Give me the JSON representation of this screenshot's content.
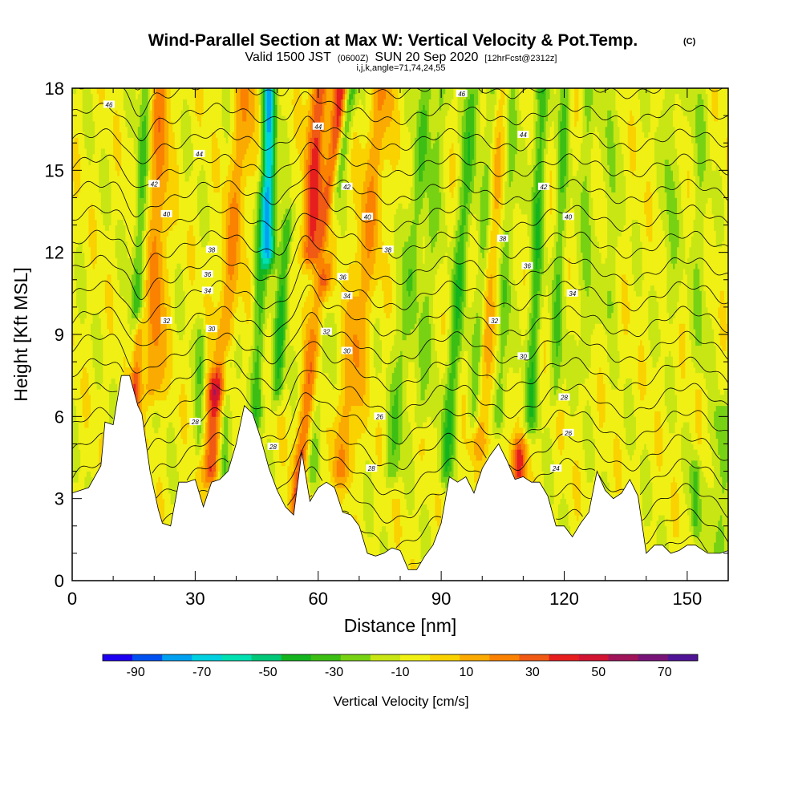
{
  "title": {
    "main": "Wind-Parallel Section at Max W: Vertical Velocity & Pot.Temp.",
    "copyright": "(C)",
    "valid_prefix": "Valid 1500 JST",
    "valid_z": "(0600Z)",
    "valid_date": "SUN 20 Sep 2020",
    "forecast": "[12hrFcst@2312z]",
    "params": "i,j,k,angle=71,74,24,55"
  },
  "chart_data": {
    "type": "heatmap",
    "xlabel": "Distance [nm]",
    "ylabel": "Height [Kft MSL]",
    "xlim": [
      0,
      160
    ],
    "ylim": [
      0,
      18
    ],
    "x_ticks": [
      0,
      30,
      60,
      90,
      120,
      150
    ],
    "y_ticks": [
      0,
      3,
      6,
      9,
      12,
      15,
      18
    ],
    "colorbar": {
      "label": "Vertical Velocity [cm/s]",
      "tick_labels": [
        "-90",
        "-70",
        "-50",
        "-30",
        "-10",
        "10",
        "30",
        "50",
        "70"
      ],
      "bounds": [
        -100,
        80
      ],
      "step": 10,
      "colors": [
        "#1e00f0",
        "#0050f0",
        "#00a0f0",
        "#00d0e0",
        "#00e0b0",
        "#00c878",
        "#14b41e",
        "#3cbe14",
        "#78d214",
        "#c8e614",
        "#f0f014",
        "#fad200",
        "#faaa00",
        "#fa8200",
        "#f05a14",
        "#e61e1e",
        "#d21432",
        "#a0145a",
        "#781478",
        "#501496"
      ]
    },
    "terrain_profile": {
      "x": [
        0,
        4,
        7,
        8,
        10,
        12,
        14,
        16,
        17,
        19,
        21,
        22,
        24,
        26,
        28,
        30,
        32,
        34,
        36,
        38,
        40,
        42,
        44,
        46,
        48,
        50,
        52,
        54,
        56,
        58,
        60,
        62,
        64,
        66,
        68,
        70,
        72,
        74,
        76,
        78,
        80,
        82,
        84,
        86,
        88,
        90,
        92,
        94,
        96,
        98,
        100,
        102,
        104,
        106,
        108,
        110,
        112,
        114,
        116,
        118,
        120,
        122,
        124,
        126,
        128,
        130,
        132,
        134,
        136,
        138,
        140,
        142,
        144,
        146,
        148,
        150,
        152,
        155,
        158,
        160
      ],
      "y": [
        3.2,
        3.4,
        4.2,
        5.8,
        5.7,
        7.5,
        7.5,
        6.4,
        6.1,
        4.0,
        2.6,
        2.1,
        2.0,
        3.6,
        3.6,
        3.7,
        2.7,
        3.6,
        3.7,
        4.0,
        5.0,
        6.4,
        6.1,
        5.2,
        4.1,
        3.3,
        2.7,
        2.4,
        4.7,
        2.9,
        3.4,
        3.6,
        3.4,
        2.5,
        2.4,
        2.0,
        1.0,
        0.9,
        1.0,
        1.2,
        1.1,
        0.4,
        0.4,
        0.9,
        1.3,
        2.1,
        3.8,
        3.6,
        3.8,
        3.2,
        4.1,
        4.6,
        5.0,
        4.4,
        3.7,
        3.8,
        3.6,
        3.6,
        3.1,
        2.0,
        2.0,
        1.6,
        2.1,
        2.5,
        4.0,
        3.3,
        3.0,
        3.2,
        3.7,
        3.1,
        1.0,
        1.3,
        1.3,
        1.0,
        1.1,
        1.3,
        1.3,
        1.0,
        1.0,
        1.1
      ]
    },
    "updraft_streaks": [
      {
        "x_base": 15,
        "lean": 0.3,
        "width": 1.4,
        "w": 48,
        "z_min": 6,
        "z_max": 9
      },
      {
        "x_base": 34,
        "lean": 0.2,
        "width": 1.8,
        "w": 52,
        "z_min": 4,
        "z_max": 7
      },
      {
        "x_base": 55,
        "lean": 0.7,
        "width": 2.0,
        "w": 48,
        "z_min": 2.5,
        "z_max": 18
      },
      {
        "x_base": 58,
        "lean": 0.4,
        "width": 2.5,
        "w": 45,
        "z_min": 12,
        "z_max": 18
      },
      {
        "x_base": 109,
        "lean": 0.0,
        "width": 2.0,
        "w": 45,
        "z_min": 3.8,
        "z_max": 4.6
      },
      {
        "x_base": 20,
        "lean": 0.15,
        "width": 2.5,
        "w": 28,
        "z_min": 7,
        "z_max": 18
      },
      {
        "x_base": 36,
        "lean": 0.6,
        "width": 2.5,
        "w": 25,
        "z_min": 7,
        "z_max": 18
      },
      {
        "x_base": 66,
        "lean": 0.7,
        "width": 3,
        "w": 24,
        "z_min": 4,
        "z_max": 18
      },
      {
        "x_base": 100,
        "lean": 0.4,
        "width": 3,
        "w": 20,
        "z_min": 5,
        "z_max": 18
      }
    ],
    "downdraft_streaks": [
      {
        "x_base": 15,
        "lean": 0.3,
        "width": 1.5,
        "w": -25,
        "z_min": 8,
        "z_max": 18
      },
      {
        "x_base": 31,
        "lean": 0.1,
        "width": 1.2,
        "w": -20,
        "z_min": 5,
        "z_max": 9
      },
      {
        "x_base": 37,
        "lean": 0.2,
        "width": 1.3,
        "w": -25,
        "z_min": 4,
        "z_max": 8
      },
      {
        "x_base": 45,
        "lean": 0.2,
        "width": 1.5,
        "w": -28,
        "z_min": 6,
        "z_max": 14
      },
      {
        "x_base": 48,
        "lean": 0.0,
        "width": 1.6,
        "w": -72,
        "z_min": 12,
        "z_max": 18
      },
      {
        "x_base": 50,
        "lean": 0.4,
        "width": 1.4,
        "w": -35,
        "z_min": 7,
        "z_max": 13
      },
      {
        "x_base": 58,
        "lean": 0.5,
        "width": 2.0,
        "w": -28,
        "z_min": 4,
        "z_max": 10
      },
      {
        "x_base": 62,
        "lean": 1.0,
        "width": 1.5,
        "w": -40,
        "z_min": 12,
        "z_max": 18
      },
      {
        "x_base": 78,
        "lean": 0.6,
        "width": 2.0,
        "w": -22,
        "z_min": 4,
        "z_max": 18
      },
      {
        "x_base": 85,
        "lean": 0.4,
        "width": 1.5,
        "w": -20,
        "z_min": 6,
        "z_max": 18
      },
      {
        "x_base": 91,
        "lean": 0.5,
        "width": 1.8,
        "w": -30,
        "z_min": 4,
        "z_max": 18
      },
      {
        "x_base": 98,
        "lean": 0.4,
        "width": 1.5,
        "w": -25,
        "z_min": 6,
        "z_max": 18
      },
      {
        "x_base": 104,
        "lean": 0.3,
        "width": 1.6,
        "w": -28,
        "z_min": 6,
        "z_max": 18
      },
      {
        "x_base": 112,
        "lean": 0.2,
        "width": 1.6,
        "w": -30,
        "z_min": 6,
        "z_max": 18
      },
      {
        "x_base": 118,
        "lean": 0.2,
        "width": 1.5,
        "w": -22,
        "z_min": 7,
        "z_max": 18
      },
      {
        "x_base": 125,
        "lean": 0.1,
        "width": 1.5,
        "w": -18,
        "z_min": 8,
        "z_max": 18
      },
      {
        "x_base": 131,
        "lean": 0.1,
        "width": 1.5,
        "w": -15,
        "z_min": 10,
        "z_max": 18
      },
      {
        "x_base": 146,
        "lean": 0.0,
        "width": 1.8,
        "w": -15,
        "z_min": 10,
        "z_max": 18
      },
      {
        "x_base": 153,
        "lean": 0.0,
        "width": 2.0,
        "w": -12,
        "z_min": 8,
        "z_max": 18
      },
      {
        "x_base": 158,
        "lean": 0.0,
        "width": 2.5,
        "w": -18,
        "z_min": 1,
        "z_max": 6
      },
      {
        "x_base": 152,
        "lean": 0.0,
        "width": 1.2,
        "w": -25,
        "z_min": 2,
        "z_max": 4
      }
    ],
    "theta_levels": [
      20,
      21,
      22,
      23,
      24,
      25,
      26,
      27,
      28,
      29,
      30,
      31,
      32,
      33,
      34,
      35,
      36,
      37,
      38,
      39,
      40,
      41,
      42,
      43,
      44,
      45,
      46
    ],
    "theta_labels": [
      {
        "text": "46",
        "x": 9,
        "y": 17.4
      },
      {
        "text": "44",
        "x": 31,
        "y": 15.6
      },
      {
        "text": "42",
        "x": 20,
        "y": 14.5
      },
      {
        "text": "40",
        "x": 23,
        "y": 13.4
      },
      {
        "text": "38",
        "x": 34,
        "y": 12.1
      },
      {
        "text": "36",
        "x": 33,
        "y": 11.2
      },
      {
        "text": "34",
        "x": 33,
        "y": 10.6
      },
      {
        "text": "32",
        "x": 23,
        "y": 9.5
      },
      {
        "text": "30",
        "x": 34,
        "y": 9.2
      },
      {
        "text": "28",
        "x": 30,
        "y": 5.8
      },
      {
        "text": "28",
        "x": 49,
        "y": 4.9
      },
      {
        "text": "44",
        "x": 60,
        "y": 16.6
      },
      {
        "text": "42",
        "x": 67,
        "y": 14.4
      },
      {
        "text": "40",
        "x": 72,
        "y": 13.3
      },
      {
        "text": "38",
        "x": 77,
        "y": 12.1
      },
      {
        "text": "36",
        "x": 66,
        "y": 11.1
      },
      {
        "text": "34",
        "x": 67,
        "y": 10.4
      },
      {
        "text": "32",
        "x": 62,
        "y": 9.1
      },
      {
        "text": "30",
        "x": 67,
        "y": 8.4
      },
      {
        "text": "26",
        "x": 75,
        "y": 6.0
      },
      {
        "text": "28",
        "x": 73,
        "y": 4.1
      },
      {
        "text": "46",
        "x": 95,
        "y": 17.8
      },
      {
        "text": "44",
        "x": 110,
        "y": 16.3
      },
      {
        "text": "42",
        "x": 115,
        "y": 14.4
      },
      {
        "text": "40",
        "x": 121,
        "y": 13.3
      },
      {
        "text": "38",
        "x": 105,
        "y": 12.5
      },
      {
        "text": "36",
        "x": 111,
        "y": 11.5
      },
      {
        "text": "34",
        "x": 122,
        "y": 10.5
      },
      {
        "text": "32",
        "x": 103,
        "y": 9.5
      },
      {
        "text": "30",
        "x": 110,
        "y": 8.2
      },
      {
        "text": "28",
        "x": 120,
        "y": 6.7
      },
      {
        "text": "26",
        "x": 121,
        "y": 5.4
      },
      {
        "text": "24",
        "x": 118,
        "y": 4.1
      }
    ]
  }
}
